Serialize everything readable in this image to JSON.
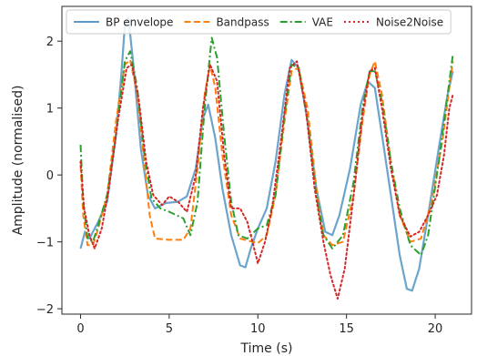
{
  "chart_data": {
    "type": "line",
    "title": "",
    "xlabel": "Time (s)",
    "ylabel": "Amplitude (normalised)",
    "xlim": [
      -1.05,
      22.05
    ],
    "ylim": [
      -2.08,
      2.52
    ],
    "xticks": [
      0,
      5,
      10,
      15,
      20
    ],
    "yticks": [
      -2,
      -1,
      0,
      1,
      2
    ],
    "grid": false,
    "legend_position": "top",
    "series": [
      {
        "name": "BP envelope",
        "color": "#5b9bc8",
        "dash": "solid",
        "points": [
          [
            0,
            -1.1
          ],
          [
            0.25,
            -0.85
          ],
          [
            0.5,
            -0.95
          ],
          [
            1,
            -0.7
          ],
          [
            1.5,
            -0.4
          ],
          [
            2,
            0.6
          ],
          [
            2.3,
            1.5
          ],
          [
            2.5,
            2.25
          ],
          [
            2.7,
            2.35
          ],
          [
            3,
            1.6
          ],
          [
            3.4,
            0.4
          ],
          [
            3.8,
            -0.3
          ],
          [
            4.2,
            -0.5
          ],
          [
            4.8,
            -0.42
          ],
          [
            5.5,
            -0.4
          ],
          [
            6,
            -0.32
          ],
          [
            6.5,
            0.1
          ],
          [
            6.9,
            0.85
          ],
          [
            7.2,
            1.05
          ],
          [
            7.6,
            0.55
          ],
          [
            8,
            -0.2
          ],
          [
            8.5,
            -0.9
          ],
          [
            9,
            -1.35
          ],
          [
            9.3,
            -1.38
          ],
          [
            9.6,
            -1.1
          ],
          [
            10,
            -0.8
          ],
          [
            10.5,
            -0.5
          ],
          [
            11,
            0.2
          ],
          [
            11.5,
            1.2
          ],
          [
            11.9,
            1.72
          ],
          [
            12.3,
            1.6
          ],
          [
            12.8,
            0.8
          ],
          [
            13.3,
            -0.2
          ],
          [
            13.8,
            -0.85
          ],
          [
            14.2,
            -0.9
          ],
          [
            14.6,
            -0.6
          ],
          [
            15.2,
            0.1
          ],
          [
            15.8,
            1.05
          ],
          [
            16.2,
            1.4
          ],
          [
            16.6,
            1.3
          ],
          [
            17,
            0.6
          ],
          [
            17.5,
            -0.3
          ],
          [
            18,
            -1.2
          ],
          [
            18.4,
            -1.7
          ],
          [
            18.7,
            -1.73
          ],
          [
            19.1,
            -1.4
          ],
          [
            19.6,
            -0.6
          ],
          [
            20.2,
            0.4
          ],
          [
            20.7,
            1.2
          ],
          [
            21,
            1.55
          ]
        ]
      },
      {
        "name": "Bandpass",
        "color": "#ff7f0e",
        "dash": "dashed",
        "points": [
          [
            0,
            0.15
          ],
          [
            0.15,
            -0.6
          ],
          [
            0.4,
            -1.05
          ],
          [
            0.7,
            -1.05
          ],
          [
            1,
            -0.8
          ],
          [
            1.5,
            -0.3
          ],
          [
            2,
            0.8
          ],
          [
            2.5,
            1.65
          ],
          [
            2.8,
            1.72
          ],
          [
            3.2,
            1.2
          ],
          [
            3.6,
            0.2
          ],
          [
            3.9,
            -0.6
          ],
          [
            4.2,
            -0.95
          ],
          [
            5,
            -0.97
          ],
          [
            5.8,
            -0.97
          ],
          [
            6.2,
            -0.8
          ],
          [
            6.6,
            0.1
          ],
          [
            7,
            1.2
          ],
          [
            7.3,
            1.65
          ],
          [
            7.6,
            1.3
          ],
          [
            8,
            0.3
          ],
          [
            8.5,
            -0.6
          ],
          [
            9,
            -0.95
          ],
          [
            10,
            -1.02
          ],
          [
            10.5,
            -0.9
          ],
          [
            11,
            -0.3
          ],
          [
            11.5,
            0.8
          ],
          [
            11.9,
            1.55
          ],
          [
            12.3,
            1.6
          ],
          [
            12.8,
            1.0
          ],
          [
            13.3,
            -0.2
          ],
          [
            13.7,
            -0.9
          ],
          [
            14.2,
            -1.05
          ],
          [
            14.8,
            -1.0
          ],
          [
            15.4,
            -0.3
          ],
          [
            15.9,
            0.8
          ],
          [
            16.3,
            1.5
          ],
          [
            16.6,
            1.7
          ],
          [
            17,
            1.2
          ],
          [
            17.5,
            0.2
          ],
          [
            18,
            -0.6
          ],
          [
            18.6,
            -1.0
          ],
          [
            19.2,
            -0.95
          ],
          [
            19.8,
            -0.4
          ],
          [
            20.4,
            0.5
          ],
          [
            20.8,
            1.3
          ],
          [
            21,
            1.7
          ]
        ]
      },
      {
        "name": "VAE",
        "color": "#2ca02c",
        "dash": "dashdot",
        "points": [
          [
            0,
            0.45
          ],
          [
            0.15,
            -0.4
          ],
          [
            0.4,
            -0.95
          ],
          [
            0.7,
            -1.0
          ],
          [
            1,
            -0.75
          ],
          [
            1.5,
            -0.3
          ],
          [
            2,
            0.6
          ],
          [
            2.5,
            1.7
          ],
          [
            2.8,
            1.85
          ],
          [
            3.2,
            1.3
          ],
          [
            3.6,
            0.3
          ],
          [
            4,
            -0.35
          ],
          [
            4.5,
            -0.5
          ],
          [
            5,
            -0.55
          ],
          [
            5.8,
            -0.65
          ],
          [
            6.2,
            -0.9
          ],
          [
            6.6,
            -0.4
          ],
          [
            7,
            1.0
          ],
          [
            7.4,
            2.05
          ],
          [
            7.7,
            1.75
          ],
          [
            8.1,
            0.6
          ],
          [
            8.5,
            -0.4
          ],
          [
            8.9,
            -0.9
          ],
          [
            9.4,
            -0.95
          ],
          [
            10,
            -0.8
          ],
          [
            10.5,
            -0.75
          ],
          [
            11,
            -0.3
          ],
          [
            11.5,
            0.9
          ],
          [
            11.9,
            1.65
          ],
          [
            12.3,
            1.6
          ],
          [
            12.8,
            0.8
          ],
          [
            13.3,
            -0.3
          ],
          [
            13.7,
            -0.9
          ],
          [
            14.2,
            -1.1
          ],
          [
            14.8,
            -0.9
          ],
          [
            15.4,
            -0.1
          ],
          [
            15.9,
            1.0
          ],
          [
            16.3,
            1.55
          ],
          [
            16.6,
            1.55
          ],
          [
            17,
            1.1
          ],
          [
            17.5,
            0.2
          ],
          [
            18,
            -0.5
          ],
          [
            18.6,
            -1.05
          ],
          [
            19.2,
            -1.2
          ],
          [
            19.6,
            -0.9
          ],
          [
            20.2,
            0.2
          ],
          [
            20.7,
            1.2
          ],
          [
            21,
            1.8
          ]
        ]
      },
      {
        "name": "Noise2Noise",
        "color": "#d62728",
        "dash": "dotted",
        "points": [
          [
            0,
            0.2
          ],
          [
            0.2,
            -0.5
          ],
          [
            0.5,
            -0.9
          ],
          [
            0.8,
            -1.1
          ],
          [
            1.2,
            -0.8
          ],
          [
            1.6,
            -0.2
          ],
          [
            2.1,
            0.8
          ],
          [
            2.6,
            1.6
          ],
          [
            2.9,
            1.65
          ],
          [
            3.3,
            1.1
          ],
          [
            3.7,
            0.2
          ],
          [
            4.1,
            -0.3
          ],
          [
            4.6,
            -0.45
          ],
          [
            5,
            -0.32
          ],
          [
            5.5,
            -0.4
          ],
          [
            6,
            -0.55
          ],
          [
            6.5,
            0.0
          ],
          [
            6.9,
            1.0
          ],
          [
            7.3,
            1.65
          ],
          [
            7.7,
            1.4
          ],
          [
            8.1,
            0.3
          ],
          [
            8.5,
            -0.5
          ],
          [
            9,
            -0.5
          ],
          [
            9.4,
            -0.7
          ],
          [
            9.7,
            -1.0
          ],
          [
            10,
            -1.32
          ],
          [
            10.4,
            -1.0
          ],
          [
            10.8,
            -0.5
          ],
          [
            11.3,
            0.5
          ],
          [
            11.8,
            1.6
          ],
          [
            12.2,
            1.7
          ],
          [
            12.7,
            1.0
          ],
          [
            13.2,
            -0.2
          ],
          [
            13.7,
            -1.0
          ],
          [
            14.1,
            -1.5
          ],
          [
            14.5,
            -1.85
          ],
          [
            14.9,
            -1.4
          ],
          [
            15.4,
            -0.3
          ],
          [
            15.9,
            0.9
          ],
          [
            16.3,
            1.55
          ],
          [
            16.6,
            1.6
          ],
          [
            17,
            1.0
          ],
          [
            17.5,
            0.1
          ],
          [
            18,
            -0.6
          ],
          [
            18.6,
            -0.92
          ],
          [
            19.1,
            -0.85
          ],
          [
            19.6,
            -0.6
          ],
          [
            20.1,
            -0.3
          ],
          [
            20.5,
            0.3
          ],
          [
            20.8,
            1.0
          ],
          [
            21,
            1.2
          ]
        ]
      }
    ]
  }
}
